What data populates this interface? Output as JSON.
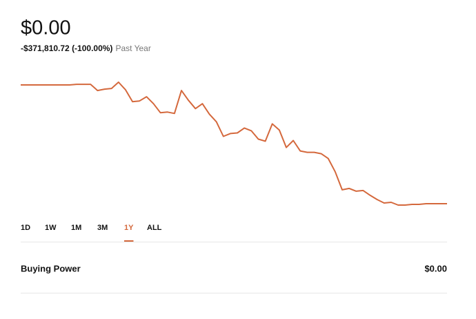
{
  "header": {
    "value": "$0.00",
    "change": "-$371,810.72 (-100.00%)",
    "period": "Past Year"
  },
  "chart_data": {
    "type": "line",
    "color": "#d4683c",
    "values": [
      371800,
      371800,
      371800,
      371800,
      371800,
      371800,
      371800,
      371800,
      373900,
      373900,
      373900,
      354400,
      358700,
      360900,
      380500,
      356500,
      319600,
      321800,
      334800,
      313100,
      284800,
      287000,
      282600,
      354400,
      323900,
      297800,
      313100,
      280400,
      256500,
      210900,
      219600,
      221700,
      237000,
      228300,
      202200,
      195700,
      250000,
      230400,
      176100,
      197800,
      165200,
      160900,
      160900,
      156500,
      141300,
      100000,
      43500,
      47800,
      39100,
      41300,
      26100,
      13000,
      2200,
      4300,
      -4300,
      -4300,
      -2200,
      -2200,
      0,
      0,
      0,
      0
    ]
  },
  "tabs": [
    "1D",
    "1W",
    "1M",
    "3M",
    "1Y",
    "ALL"
  ],
  "active_tab": "1Y",
  "buying_power": {
    "label": "Buying Power",
    "value": "$0.00"
  }
}
